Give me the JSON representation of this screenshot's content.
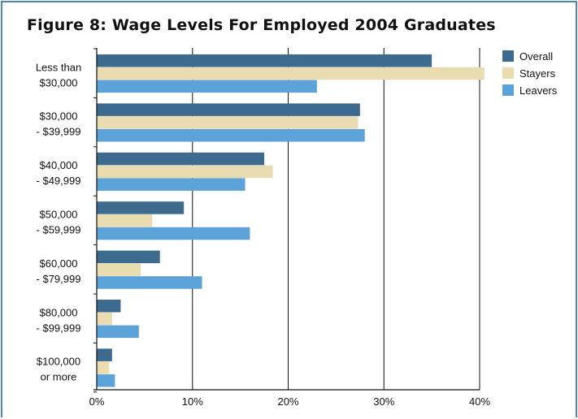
{
  "chart_data": {
    "type": "bar",
    "orientation": "horizontal",
    "title": "Figure 8:  Wage Levels For Employed 2004 Graduates",
    "categories": [
      [
        "Less than",
        "$30,000"
      ],
      [
        "$30,000",
        "- $39,999"
      ],
      [
        "$40,000",
        "- $49,999"
      ],
      [
        "$50,000",
        "- $59,999"
      ],
      [
        "$60,000",
        "- $79,999"
      ],
      [
        "$80,000",
        "- $99,999"
      ],
      [
        "$100,000",
        "or more"
      ]
    ],
    "series": [
      {
        "name": "Overall",
        "color": "#3d6b8f",
        "values": [
          35.0,
          27.5,
          17.5,
          9.1,
          6.6,
          2.5,
          1.6
        ]
      },
      {
        "name": "Stayers",
        "color": "#e8dcb0",
        "values": [
          40.5,
          27.3,
          18.4,
          5.8,
          4.6,
          1.6,
          1.3
        ]
      },
      {
        "name": "Leavers",
        "color": "#5ba3d9",
        "values": [
          23.0,
          28.0,
          15.5,
          16.0,
          11.0,
          4.4,
          1.9
        ]
      }
    ],
    "xlim": [
      0,
      40
    ],
    "ticks": [
      0,
      10,
      20,
      30,
      40
    ],
    "tick_labels": [
      "0%",
      "10%",
      "20%",
      "30%",
      "40%"
    ],
    "grid": true,
    "legend_position": "top-right"
  }
}
